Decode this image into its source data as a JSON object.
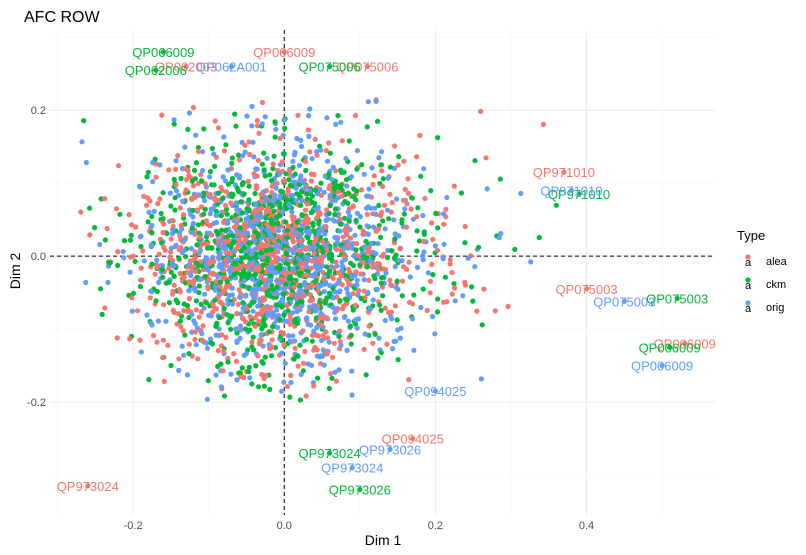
{
  "chart_data": {
    "type": "scatter",
    "title": "AFC ROW",
    "xlabel": "Dim 1",
    "ylabel": "Dim 2",
    "xlim": [
      -0.31,
      0.57
    ],
    "ylim": [
      -0.355,
      0.31
    ],
    "x_ticks": [
      -0.2,
      0.0,
      0.2,
      0.4
    ],
    "y_ticks": [
      -0.2,
      0.0,
      0.2
    ],
    "x_tick_labels": [
      "-0.2",
      "0.0",
      "0.2",
      "0.4"
    ],
    "y_tick_labels": [
      "-0.2",
      "0.0",
      "0.2"
    ],
    "grid": true,
    "reference_lines": {
      "x": 0,
      "y": 0,
      "style": "dashed"
    },
    "legend": {
      "title": "Type",
      "position": "right",
      "entries": [
        {
          "name": "alea",
          "color": "#F8766D",
          "glyph": "a"
        },
        {
          "name": "ckm",
          "color": "#00BA38",
          "glyph": "a"
        },
        {
          "name": "orig",
          "color": "#619CFF",
          "glyph": "a"
        }
      ]
    },
    "series": [
      {
        "name": "alea",
        "color": "#F8766D",
        "labeled_points": [
          {
            "label": "QP066009",
            "x": 0.0,
            "y": 0.28
          },
          {
            "label": "QP062003",
            "x": -0.13,
            "y": 0.26
          },
          {
            "label": "QP075006",
            "x": 0.11,
            "y": 0.26
          },
          {
            "label": "QP971010",
            "x": 0.37,
            "y": 0.115
          },
          {
            "label": "QP075003",
            "x": 0.4,
            "y": -0.045
          },
          {
            "label": "QP006009",
            "x": 0.53,
            "y": -0.12
          },
          {
            "label": "QP094025",
            "x": 0.17,
            "y": -0.25
          },
          {
            "label": "QP973024",
            "x": -0.26,
            "y": -0.315
          }
        ]
      },
      {
        "name": "ckm",
        "color": "#00BA38",
        "labeled_points": [
          {
            "label": "QP066009",
            "x": -0.16,
            "y": 0.28
          },
          {
            "label": "QP062006",
            "x": -0.17,
            "y": 0.255
          },
          {
            "label": "QP075006",
            "x": 0.06,
            "y": 0.26
          },
          {
            "label": "QP971010",
            "x": 0.39,
            "y": 0.085
          },
          {
            "label": "QP075003",
            "x": 0.52,
            "y": -0.058
          },
          {
            "label": "QP006009",
            "x": 0.51,
            "y": -0.125
          },
          {
            "label": "QP973024",
            "x": 0.06,
            "y": -0.27
          },
          {
            "label": "QP973026",
            "x": 0.1,
            "y": -0.32
          }
        ]
      },
      {
        "name": "orig",
        "color": "#619CFF",
        "labeled_points": [
          {
            "label": "QP062A001",
            "x": -0.07,
            "y": 0.26
          },
          {
            "label": "QP971010",
            "x": 0.38,
            "y": 0.09
          },
          {
            "label": "QP075003",
            "x": 0.45,
            "y": -0.062
          },
          {
            "label": "QP006009",
            "x": 0.5,
            "y": -0.15
          },
          {
            "label": "QP094025",
            "x": 0.2,
            "y": -0.185
          },
          {
            "label": "QP973026",
            "x": 0.14,
            "y": -0.265
          },
          {
            "label": "QP973024",
            "x": 0.09,
            "y": -0.29
          }
        ]
      }
    ]
  }
}
